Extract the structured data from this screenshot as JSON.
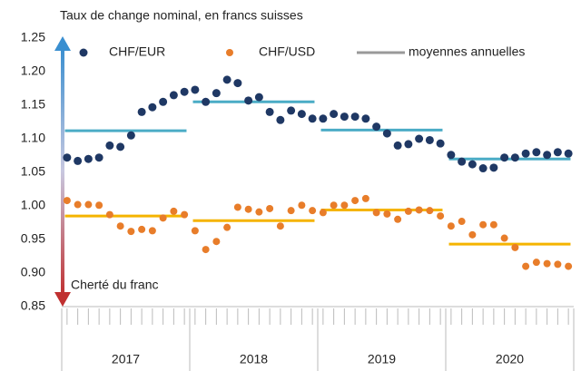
{
  "chart_data": {
    "type": "scatter",
    "title": "Taux de change nominal, en francs suisses",
    "annotation": "Cherté du franc",
    "categories": [
      null,
      null,
      null,
      null,
      null,
      null,
      null,
      null,
      null,
      null,
      null,
      null,
      null,
      null,
      null,
      null,
      null,
      null,
      null,
      null,
      null,
      null,
      null,
      null,
      null,
      null,
      null,
      null,
      null,
      null,
      null,
      null,
      null,
      null,
      null,
      null,
      null,
      null,
      null,
      null,
      null,
      null,
      null,
      null,
      null,
      null,
      null,
      null
    ],
    "groups": [
      "2017",
      "2018",
      "2019",
      "2020"
    ],
    "series": [
      {
        "name": "CHF/EUR",
        "color": "#1f3864",
        "values": [
          1.072,
          1.067,
          1.07,
          1.072,
          1.09,
          1.088,
          1.105,
          1.14,
          1.147,
          1.155,
          1.165,
          1.17,
          1.173,
          1.155,
          1.168,
          1.188,
          1.183,
          1.157,
          1.162,
          1.14,
          1.128,
          1.142,
          1.137,
          1.13,
          1.13,
          1.137,
          1.133,
          1.133,
          1.13,
          1.118,
          1.108,
          1.09,
          1.092,
          1.1,
          1.098,
          1.093,
          1.076,
          1.066,
          1.062,
          1.056,
          1.057,
          1.072,
          1.072,
          1.078,
          1.08,
          1.076,
          1.08,
          1.078
        ]
      },
      {
        "name": "CHF/USD",
        "color": "#e87d2a",
        "values": [
          1.008,
          1.002,
          1.002,
          1.001,
          0.987,
          0.97,
          0.962,
          0.965,
          0.963,
          0.982,
          0.992,
          0.987,
          0.963,
          0.935,
          0.947,
          0.968,
          0.998,
          0.995,
          0.991,
          0.996,
          0.97,
          0.993,
          1.001,
          0.993,
          0.99,
          1.001,
          1.001,
          1.008,
          1.011,
          0.99,
          0.988,
          0.98,
          0.992,
          0.994,
          0.993,
          0.985,
          0.97,
          0.977,
          0.957,
          0.972,
          0.972,
          0.952,
          0.938,
          0.91,
          0.916,
          0.914,
          0.913,
          0.91
        ]
      }
    ],
    "averages": {
      "name": "moyennes annuelles",
      "color": "#999999",
      "series": [
        {
          "color": "#4bacc6",
          "values": [
            1.112,
            1.155,
            1.113,
            1.07
          ]
        },
        {
          "color": "#f5b400",
          "values": [
            0.985,
            0.978,
            0.994,
            0.943
          ]
        }
      ]
    },
    "ylim": [
      0.85,
      1.25
    ],
    "yticks": [
      {
        "value": 0.85,
        "label": "0.85"
      },
      {
        "value": 0.9,
        "label": "0.90"
      },
      {
        "value": 0.95,
        "label": "0.95"
      },
      {
        "value": 1.0,
        "label": "1.00"
      },
      {
        "value": 1.05,
        "label": "1.05"
      },
      {
        "value": 1.1,
        "label": "1.10"
      },
      {
        "value": 1.15,
        "label": "1.15"
      },
      {
        "value": 1.2,
        "label": "1.20"
      },
      {
        "value": 1.25,
        "label": "1.25"
      }
    ],
    "annotation_color": "#d03030"
  }
}
